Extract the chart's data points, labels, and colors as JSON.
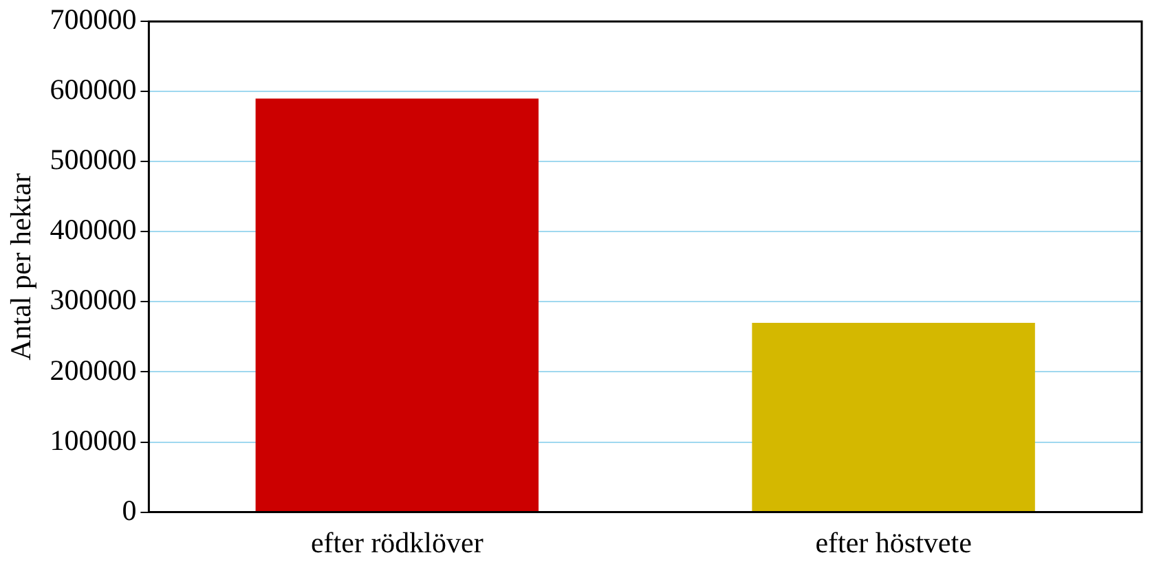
{
  "chart_data": {
    "type": "bar",
    "ylabel": "Antal per hektar",
    "categories": [
      "efter rödklöver",
      "efter höstvete"
    ],
    "values": [
      590000,
      270000
    ],
    "colors": [
      "#cc0000",
      "#d4b800"
    ],
    "ylim": [
      0,
      700000
    ],
    "yticks": [
      0,
      100000,
      200000,
      300000,
      400000,
      500000,
      600000,
      700000
    ],
    "grid": "y",
    "legend": false
  }
}
